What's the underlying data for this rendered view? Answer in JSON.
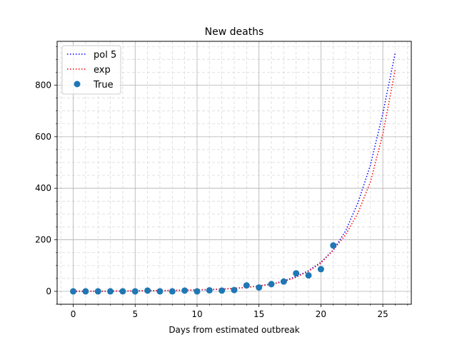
{
  "chart_data": {
    "type": "line",
    "title": "New deaths",
    "xlabel": "Days from estimated outbreak",
    "ylabel": "",
    "xlim": [
      -1.3,
      27.3
    ],
    "ylim": [
      -50,
      970
    ],
    "xticks": [
      0,
      5,
      10,
      15,
      20,
      25
    ],
    "yticks": [
      0,
      200,
      400,
      600,
      800
    ],
    "grid": {
      "major": true,
      "minor": true
    },
    "legend_position": "top-left",
    "series": [
      {
        "name": "pol 5",
        "kind": "line",
        "style": "dotted",
        "color": "#0000ff",
        "x": [
          0,
          2,
          4,
          6,
          8,
          10,
          12,
          14,
          16,
          17,
          18,
          19,
          20,
          21,
          22,
          23,
          24,
          25,
          26
        ],
        "y": [
          0,
          0,
          1,
          2,
          3,
          5,
          8,
          15,
          28,
          40,
          58,
          80,
          113,
          160,
          235,
          345,
          490,
          690,
          925
        ]
      },
      {
        "name": "exp",
        "kind": "line",
        "style": "dotted",
        "color": "#ff0000",
        "x": [
          0,
          2,
          4,
          6,
          8,
          10,
          12,
          14,
          16,
          17,
          18,
          19,
          20,
          21,
          22,
          23,
          24,
          25,
          26
        ],
        "y": [
          1,
          1,
          2,
          3,
          4,
          6,
          9,
          15,
          27,
          38,
          55,
          78,
          110,
          160,
          220,
          305,
          425,
          610,
          860
        ]
      },
      {
        "name": "True",
        "kind": "scatter",
        "color": "#1f77b4",
        "x": [
          0,
          1,
          2,
          3,
          4,
          5,
          6,
          7,
          8,
          9,
          10,
          11,
          12,
          13,
          14,
          15,
          16,
          17,
          18,
          19,
          20,
          21
        ],
        "y": [
          0,
          0,
          0,
          0,
          0,
          0,
          3,
          0,
          0,
          3,
          0,
          4,
          3,
          5,
          23,
          15,
          28,
          38,
          70,
          62,
          86,
          178
        ]
      }
    ]
  }
}
